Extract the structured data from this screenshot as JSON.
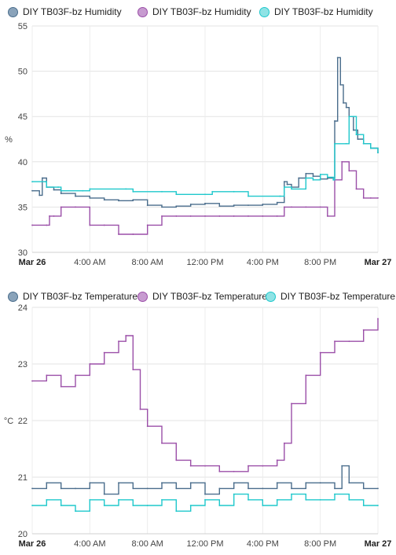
{
  "charts": [
    {
      "legend": [
        {
          "label": "DIY TB03F-bz Humidity",
          "color": "#4a6d8c",
          "fill": "#8aa3ba"
        },
        {
          "label": "DIY TB03F-bz Humidity",
          "color": "#9b4fa8",
          "fill": "#c79bd0"
        },
        {
          "label": "DIY TB03F-bz Humidity",
          "color": "#1fc8cc",
          "fill": "#8fe3e5"
        }
      ],
      "ylabel": "%",
      "yticks": [
        "30",
        "35",
        "40",
        "45",
        "50",
        "55"
      ],
      "xticks": [
        "Mar 26",
        "4:00 AM",
        "8:00 AM",
        "12:00 PM",
        "4:00 PM",
        "8:00 PM",
        "Mar 27"
      ]
    },
    {
      "legend": [
        {
          "label": "DIY TB03F-bz Temperature",
          "color": "#4a6d8c",
          "fill": "#8aa3ba"
        },
        {
          "label": "DIY TB03F-bz Temperature",
          "color": "#9b4fa8",
          "fill": "#c79bd0"
        },
        {
          "label": "DIY TB03F-bz Temperature",
          "color": "#1fc8cc",
          "fill": "#8fe3e5"
        }
      ],
      "ylabel": "°C",
      "yticks": [
        "20",
        "21",
        "22",
        "23",
        "24"
      ],
      "xticks": [
        "Mar 26",
        "4:00 AM",
        "8:00 AM",
        "12:00 PM",
        "4:00 PM",
        "8:00 PM",
        "Mar 27"
      ]
    }
  ],
  "chart_data": [
    {
      "type": "line",
      "x_unit": "hours since Mar 26 00:00",
      "ylabel": "%",
      "ylim": [
        30,
        55
      ],
      "xlim": [
        0,
        24
      ],
      "grid": true,
      "legend_position": "top",
      "series": [
        {
          "name": "DIY TB03F-bz Humidity",
          "color": "#4a6d8c",
          "x": [
            0,
            0.5,
            0.7,
            1,
            1.5,
            2,
            3,
            4,
            5,
            6,
            7,
            8,
            9,
            10,
            11,
            12,
            13,
            14,
            15,
            16,
            17,
            17.5,
            17.7,
            18,
            18.5,
            19,
            19.5,
            20,
            20.5,
            21,
            21.2,
            21.4,
            21.6,
            21.8,
            22,
            22.3,
            22.6,
            23,
            23.5,
            24
          ],
          "y": [
            36.8,
            36.3,
            38.2,
            37.2,
            36.9,
            36.5,
            36.2,
            36.0,
            35.8,
            35.7,
            35.8,
            35.2,
            35.0,
            35.1,
            35.3,
            35.4,
            35.1,
            35.2,
            35.2,
            35.3,
            35.5,
            37.8,
            37.5,
            37.2,
            38.2,
            38.7,
            38.4,
            38.1,
            38.2,
            44.5,
            51.5,
            48.5,
            46.5,
            46.0,
            45.0,
            43.5,
            42.5,
            42.0,
            41.5,
            41.0
          ]
        },
        {
          "name": "DIY TB03F-bz Humidity",
          "color": "#9b4fa8",
          "x": [
            0,
            1,
            1.2,
            1.5,
            2,
            3,
            4,
            5,
            6,
            7,
            8,
            9,
            10,
            11,
            12,
            13,
            14,
            15,
            16,
            17,
            17.5,
            18,
            19,
            20,
            20.5,
            21,
            21.5,
            22,
            22.5,
            23,
            23.5,
            24
          ],
          "y": [
            33,
            33,
            34,
            34,
            35,
            35,
            33,
            33,
            32,
            32,
            33,
            34,
            34,
            34,
            34,
            34,
            34,
            34,
            34,
            34,
            35,
            35,
            35,
            35,
            34,
            38,
            40,
            39,
            37,
            36,
            36,
            36
          ]
        },
        {
          "name": "DIY TB03F-bz Humidity",
          "color": "#1fc8cc",
          "x": [
            0,
            0.9,
            1,
            1.8,
            2,
            3.5,
            4,
            6.5,
            7,
            9,
            10,
            12,
            12.5,
            14,
            15,
            17.2,
            17.5,
            18,
            19,
            19.5,
            20,
            20.5,
            20.9,
            21,
            21.8,
            22,
            22.5,
            23,
            23.5,
            24
          ],
          "y": [
            37.8,
            37.8,
            37.2,
            37.2,
            36.8,
            36.8,
            37.0,
            37.0,
            36.7,
            36.7,
            36.4,
            36.4,
            36.7,
            36.7,
            36.2,
            36.2,
            37.2,
            37.0,
            38.2,
            38.0,
            38.6,
            38.3,
            38.0,
            42.0,
            42.0,
            45.0,
            43.0,
            42.0,
            41.5,
            41.0
          ]
        }
      ]
    },
    {
      "type": "line",
      "x_unit": "hours since Mar 26 00:00",
      "ylabel": "°C",
      "ylim": [
        20,
        24
      ],
      "xlim": [
        0,
        24
      ],
      "grid": true,
      "legend_position": "top",
      "series": [
        {
          "name": "DIY TB03F-bz Temperature",
          "color": "#4a6d8c",
          "x": [
            0,
            1,
            2,
            3,
            4,
            5,
            6,
            7,
            8,
            9,
            10,
            11,
            12,
            13,
            14,
            15,
            16,
            17,
            18,
            19,
            20,
            21,
            21.5,
            22,
            23,
            24
          ],
          "y": [
            20.8,
            20.9,
            20.8,
            20.8,
            20.9,
            20.7,
            20.9,
            20.8,
            20.8,
            20.9,
            20.8,
            20.9,
            20.7,
            20.8,
            20.9,
            20.8,
            20.8,
            20.9,
            20.8,
            20.9,
            20.9,
            20.8,
            21.2,
            20.9,
            20.8,
            20.8
          ]
        },
        {
          "name": "DIY TB03F-bz Temperature",
          "color": "#9b4fa8",
          "x": [
            0,
            1,
            2,
            3,
            4,
            5,
            6,
            6.5,
            7,
            7.5,
            8,
            9,
            10,
            11,
            12,
            13,
            14,
            15,
            16,
            17,
            17.5,
            18,
            19,
            20,
            21,
            22,
            23,
            24
          ],
          "y": [
            22.7,
            22.8,
            22.6,
            22.8,
            23.0,
            23.2,
            23.4,
            23.5,
            22.9,
            22.2,
            21.9,
            21.6,
            21.3,
            21.2,
            21.2,
            21.1,
            21.1,
            21.2,
            21.2,
            21.3,
            21.6,
            22.3,
            22.8,
            23.2,
            23.4,
            23.4,
            23.6,
            23.8
          ]
        },
        {
          "name": "DIY TB03F-bz Temperature",
          "color": "#1fc8cc",
          "x": [
            0,
            1,
            2,
            3,
            4,
            5,
            6,
            7,
            8,
            9,
            10,
            11,
            12,
            13,
            14,
            15,
            16,
            17,
            18,
            19,
            20,
            21,
            22,
            23,
            24
          ],
          "y": [
            20.5,
            20.6,
            20.5,
            20.4,
            20.6,
            20.5,
            20.6,
            20.5,
            20.5,
            20.6,
            20.4,
            20.5,
            20.6,
            20.5,
            20.7,
            20.6,
            20.5,
            20.6,
            20.7,
            20.6,
            20.6,
            20.7,
            20.6,
            20.5,
            20.5
          ]
        }
      ]
    }
  ]
}
